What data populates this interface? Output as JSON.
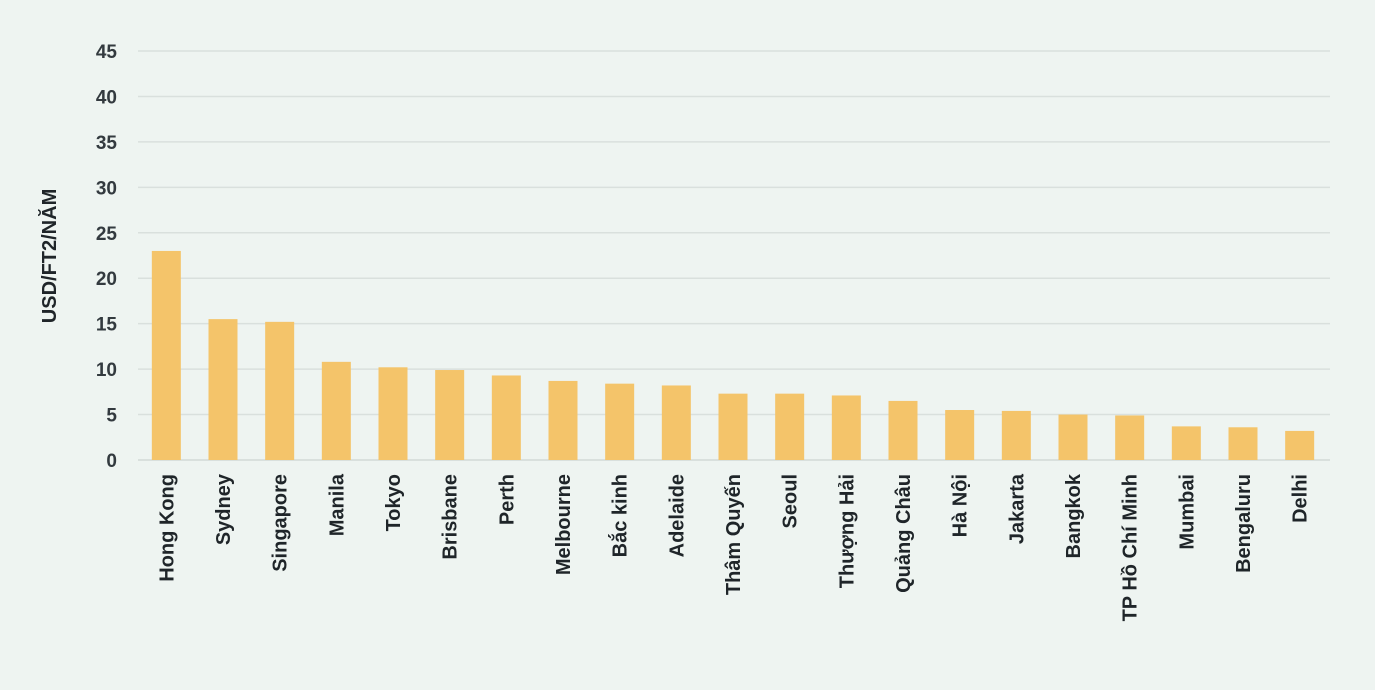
{
  "chart_data": {
    "type": "bar",
    "title": "",
    "xlabel": "",
    "ylabel": "USD/FT2/NĂM",
    "ylim": [
      0,
      45
    ],
    "yticks": [
      0,
      5,
      10,
      15,
      20,
      25,
      30,
      35,
      40,
      45
    ],
    "grid": true,
    "legend": "none",
    "bar_color": "#f4c46a",
    "grid_color": "#d9e0dd",
    "categories": [
      "Hong Kong",
      "Sydney",
      "Singapore",
      "Manila",
      "Tokyo",
      "Brisbane",
      "Perth",
      "Melbourne",
      "Bắc kinh",
      "Adelaide",
      "Thâm Quyến",
      "Seoul",
      "Thượng Hải",
      "Quảng Châu",
      "Hà Nội",
      "Jakarta",
      "Bangkok",
      "TP Hồ Chí Minh",
      "Mumbai",
      "Bengaluru",
      "Delhi"
    ],
    "values": [
      23.0,
      15.5,
      15.2,
      10.8,
      10.2,
      9.9,
      9.3,
      8.7,
      8.4,
      8.2,
      7.3,
      7.3,
      7.1,
      6.5,
      5.5,
      5.4,
      5.0,
      4.9,
      3.7,
      3.6,
      3.2
    ]
  }
}
